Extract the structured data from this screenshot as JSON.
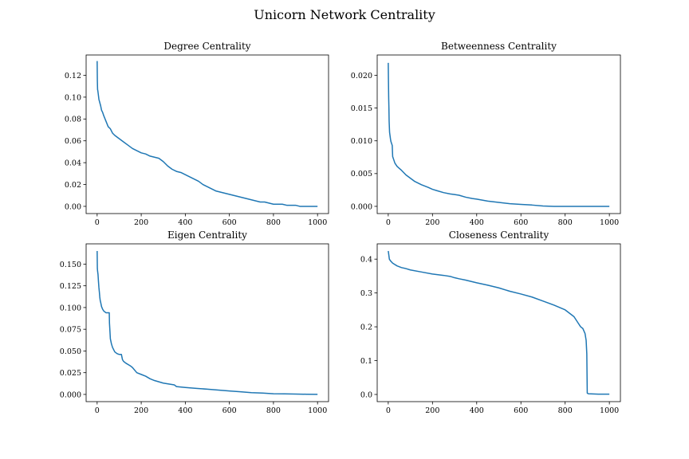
{
  "figure": {
    "title": "Unicorn Network Centrality"
  },
  "chart_data": [
    {
      "type": "line",
      "title": "Degree Centrality",
      "xlabel": "",
      "ylabel": "",
      "xlim": [
        -50,
        1050
      ],
      "ylim": [
        -0.0066,
        0.1386
      ],
      "xticks": [
        0,
        200,
        400,
        600,
        800,
        1000
      ],
      "xtick_labels": [
        "0",
        "200",
        "400",
        "600",
        "800",
        "1000"
      ],
      "yticks": [
        0.0,
        0.02,
        0.04,
        0.06,
        0.08,
        0.1,
        0.12
      ],
      "ytick_labels": [
        "0.00",
        "0.02",
        "0.04",
        "0.06",
        "0.08",
        "0.10",
        "0.12"
      ],
      "grid": false,
      "series": [
        {
          "color": "#1f77b4",
          "x": [
            0,
            1,
            2,
            3,
            5,
            8,
            12,
            16,
            20,
            25,
            30,
            40,
            50,
            60,
            70,
            80,
            100,
            120,
            140,
            160,
            180,
            200,
            220,
            240,
            260,
            280,
            300,
            320,
            340,
            360,
            380,
            400,
            420,
            440,
            460,
            480,
            500,
            520,
            540,
            560,
            580,
            600,
            620,
            640,
            660,
            680,
            700,
            720,
            740,
            760,
            780,
            800,
            820,
            840,
            860,
            880,
            900,
            920,
            940,
            960,
            980,
            1000
          ],
          "y": [
            0.133,
            0.115,
            0.107,
            0.106,
            0.103,
            0.098,
            0.095,
            0.092,
            0.088,
            0.086,
            0.083,
            0.078,
            0.073,
            0.071,
            0.067,
            0.065,
            0.062,
            0.059,
            0.056,
            0.053,
            0.051,
            0.049,
            0.048,
            0.046,
            0.045,
            0.044,
            0.041,
            0.037,
            0.034,
            0.032,
            0.031,
            0.029,
            0.027,
            0.025,
            0.023,
            0.02,
            0.018,
            0.016,
            0.014,
            0.013,
            0.012,
            0.011,
            0.01,
            0.009,
            0.008,
            0.007,
            0.006,
            0.005,
            0.004,
            0.004,
            0.003,
            0.002,
            0.002,
            0.002,
            0.001,
            0.001,
            0.001,
            0.0,
            0.0,
            0.0,
            0.0,
            0.0
          ]
        }
      ]
    },
    {
      "type": "line",
      "title": "Betweenness Centrality",
      "xlabel": "",
      "ylabel": "",
      "xlim": [
        -50,
        1050
      ],
      "ylim": [
        -0.0011,
        0.0231
      ],
      "xticks": [
        0,
        200,
        400,
        600,
        800,
        1000
      ],
      "xtick_labels": [
        "0",
        "200",
        "400",
        "600",
        "800",
        "1000"
      ],
      "yticks": [
        0.0,
        0.005,
        0.01,
        0.015,
        0.02
      ],
      "ytick_labels": [
        "0.000",
        "0.005",
        "0.010",
        "0.015",
        "0.020"
      ],
      "grid": false,
      "series": [
        {
          "color": "#1f77b4",
          "x": [
            0,
            1,
            2,
            3,
            4,
            6,
            8,
            10,
            12,
            15,
            18,
            20,
            25,
            30,
            40,
            50,
            60,
            80,
            100,
            120,
            150,
            180,
            200,
            220,
            250,
            280,
            300,
            320,
            350,
            380,
            400,
            450,
            500,
            550,
            600,
            650,
            700,
            750,
            800,
            850,
            900,
            950,
            1000
          ],
          "y": [
            0.0219,
            0.019,
            0.0165,
            0.015,
            0.013,
            0.0113,
            0.0108,
            0.0103,
            0.0099,
            0.0096,
            0.0093,
            0.0076,
            0.0071,
            0.0066,
            0.0061,
            0.0058,
            0.0055,
            0.0048,
            0.0043,
            0.0038,
            0.0033,
            0.0029,
            0.0026,
            0.0024,
            0.0021,
            0.0019,
            0.0018,
            0.0017,
            0.0014,
            0.0012,
            0.0011,
            0.0008,
            0.0006,
            0.0004,
            0.0003,
            0.0002,
            5e-05,
            0.0,
            0.0,
            0.0,
            0.0,
            0.0,
            0.0
          ]
        }
      ]
    },
    {
      "type": "line",
      "title": "Eigen Centrality",
      "xlabel": "",
      "ylabel": "",
      "xlim": [
        -50,
        1050
      ],
      "ylim": [
        -0.0083,
        0.1733
      ],
      "xticks": [
        0,
        200,
        400,
        600,
        800,
        1000
      ],
      "xtick_labels": [
        "0",
        "200",
        "400",
        "600",
        "800",
        "1000"
      ],
      "yticks": [
        0.0,
        0.025,
        0.05,
        0.075,
        0.1,
        0.125,
        0.15
      ],
      "ytick_labels": [
        "0.000",
        "0.025",
        "0.050",
        "0.075",
        "0.100",
        "0.125",
        "0.150"
      ],
      "grid": false,
      "series": [
        {
          "color": "#1f77b4",
          "x": [
            0,
            1,
            2,
            4,
            6,
            8,
            10,
            12,
            14,
            16,
            20,
            25,
            30,
            40,
            50,
            55,
            56,
            60,
            65,
            70,
            80,
            90,
            100,
            110,
            115,
            120,
            130,
            150,
            160,
            180,
            200,
            220,
            240,
            260,
            300,
            350,
            360,
            400,
            450,
            500,
            550,
            600,
            650,
            700,
            750,
            800,
            850,
            900,
            950,
            1000
          ],
          "y": [
            0.165,
            0.145,
            0.142,
            0.138,
            0.13,
            0.123,
            0.118,
            0.112,
            0.108,
            0.106,
            0.101,
            0.098,
            0.096,
            0.094,
            0.094,
            0.094,
            0.082,
            0.064,
            0.058,
            0.054,
            0.049,
            0.047,
            0.046,
            0.046,
            0.04,
            0.038,
            0.036,
            0.033,
            0.031,
            0.025,
            0.023,
            0.021,
            0.018,
            0.016,
            0.013,
            0.011,
            0.009,
            0.008,
            0.007,
            0.006,
            0.005,
            0.004,
            0.003,
            0.002,
            0.0015,
            0.0008,
            0.0006,
            0.0004,
            0.0002,
            0.0001
          ]
        }
      ]
    },
    {
      "type": "line",
      "title": "Closeness Centrality",
      "xlabel": "",
      "ylabel": "",
      "xlim": [
        -50,
        1050
      ],
      "ylim": [
        -0.0212,
        0.4452
      ],
      "xticks": [
        0,
        200,
        400,
        600,
        800,
        1000
      ],
      "xtick_labels": [
        "0",
        "200",
        "400",
        "600",
        "800",
        "1000"
      ],
      "yticks": [
        0.0,
        0.1,
        0.2,
        0.3,
        0.4
      ],
      "ytick_labels": [
        "0.0",
        "0.1",
        "0.2",
        "0.3",
        "0.4"
      ],
      "grid": false,
      "series": [
        {
          "color": "#1f77b4",
          "x": [
            0,
            1,
            3,
            5,
            10,
            20,
            40,
            60,
            80,
            100,
            150,
            200,
            250,
            280,
            300,
            320,
            350,
            400,
            450,
            500,
            550,
            600,
            650,
            700,
            750,
            800,
            820,
            840,
            860,
            870,
            880,
            890,
            895,
            898,
            900,
            905,
            950,
            1000
          ],
          "y": [
            0.424,
            0.42,
            0.41,
            0.4,
            0.395,
            0.388,
            0.38,
            0.375,
            0.372,
            0.368,
            0.362,
            0.356,
            0.352,
            0.349,
            0.345,
            0.342,
            0.338,
            0.33,
            0.323,
            0.315,
            0.305,
            0.297,
            0.288,
            0.276,
            0.264,
            0.25,
            0.24,
            0.23,
            0.21,
            0.2,
            0.195,
            0.18,
            0.16,
            0.12,
            0.004,
            0.002,
            0.001,
            0.001
          ]
        }
      ]
    }
  ]
}
